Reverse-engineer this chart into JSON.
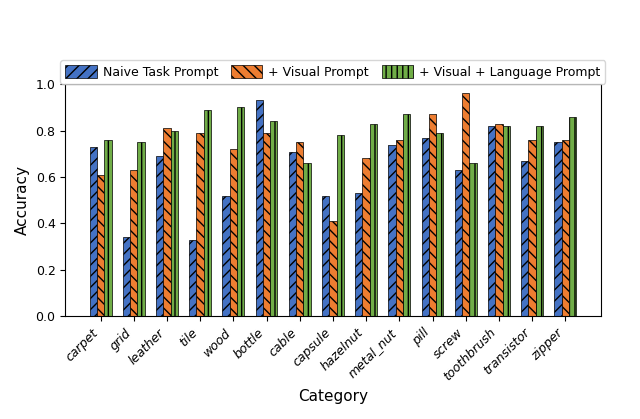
{
  "categories": [
    "carpet",
    "grid",
    "leather",
    "tile",
    "wood",
    "bottle",
    "cable",
    "capsule",
    "hazelnut",
    "metal_nut",
    "pill",
    "screw",
    "toothbrush",
    "transistor",
    "zipper"
  ],
  "series": [
    {
      "label": "Naive Task Prompt",
      "color": "#4472c4",
      "hatch": "///",
      "values": [
        0.73,
        0.34,
        0.69,
        0.33,
        0.52,
        0.93,
        0.71,
        0.52,
        0.53,
        0.74,
        0.77,
        0.63,
        0.82,
        0.67,
        0.75
      ]
    },
    {
      "label": "+ Visual Prompt",
      "color": "#ed7d31",
      "hatch": "\\\\\\",
      "values": [
        0.61,
        0.63,
        0.81,
        0.79,
        0.72,
        0.79,
        0.75,
        0.41,
        0.68,
        0.76,
        0.87,
        0.96,
        0.83,
        0.76,
        0.76
      ]
    },
    {
      "label": "+ Visual + Language Prompt",
      "color": "#70ad47",
      "hatch": "|||",
      "values": [
        0.76,
        0.75,
        0.8,
        0.89,
        0.9,
        0.84,
        0.66,
        0.78,
        0.83,
        0.87,
        0.79,
        0.66,
        0.82,
        0.82,
        0.86
      ]
    }
  ],
  "xlabel": "Category",
  "ylabel": "Accuracy",
  "ylim": [
    0.0,
    1.0
  ],
  "yticks": [
    0.0,
    0.2,
    0.4,
    0.6,
    0.8,
    1.0
  ],
  "bar_width": 0.22,
  "figsize": [
    6.4,
    4.19
  ],
  "dpi": 100,
  "legend_ncol": 3,
  "background_color": "#ffffff",
  "edge_color": "#000000",
  "axis_fontsize": 11,
  "tick_fontsize": 9,
  "legend_fontsize": 9
}
